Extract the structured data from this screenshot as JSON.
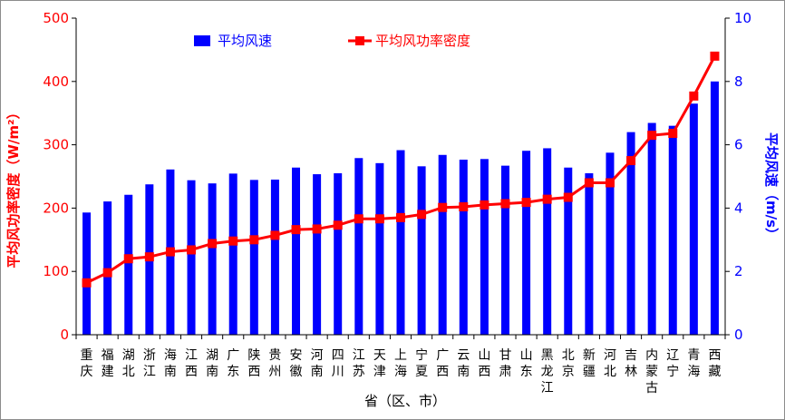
{
  "chart_data": {
    "type": "bar",
    "title": "",
    "xlabel": "省（区、市）",
    "ylabel_left": "平均风功率密度（W/m²）",
    "ylabel_right": "平均风速（m/s）",
    "ylim_left": [
      0,
      500
    ],
    "ylim_right": [
      0,
      10
    ],
    "yticks_left": [
      "0",
      "100",
      "200",
      "300",
      "400",
      "500"
    ],
    "yticks_right": [
      "0",
      "2",
      "4",
      "6",
      "8",
      "10"
    ],
    "legend_position": "top",
    "categories": [
      "重庆",
      "福建",
      "湖北",
      "浙江",
      "海南",
      "江西",
      "湖南",
      "广东",
      "陕西",
      "贵州",
      "安徽",
      "河南",
      "四川",
      "江苏",
      "天津",
      "上海",
      "宁夏",
      "广西",
      "云南",
      "山西",
      "甘肃",
      "山东",
      "黑龙江",
      "北京",
      "新疆",
      "河北",
      "吉林",
      "内蒙古",
      "辽宁",
      "青海",
      "西藏"
    ],
    "series": [
      {
        "name": "平均风速",
        "type": "bar",
        "axis": "right",
        "color": "#0000ff",
        "values": [
          3.86,
          4.21,
          4.42,
          4.75,
          5.22,
          4.88,
          4.78,
          5.09,
          4.89,
          4.9,
          5.28,
          5.07,
          5.1,
          5.58,
          5.42,
          5.83,
          5.32,
          5.68,
          5.53,
          5.55,
          5.34,
          5.81,
          5.89,
          5.28,
          5.1,
          5.75,
          6.4,
          6.69,
          6.6,
          7.3,
          8.0
        ]
      },
      {
        "name": "平均风功率密度",
        "type": "line",
        "axis": "left",
        "color": "#ff0000",
        "values": [
          82,
          98,
          120,
          123,
          131,
          134,
          144,
          148,
          150,
          157,
          166,
          167,
          173,
          183,
          183,
          185,
          190,
          201,
          202,
          205,
          207,
          209,
          214,
          217,
          240,
          240,
          275,
          315,
          318,
          377,
          440
        ]
      }
    ]
  }
}
